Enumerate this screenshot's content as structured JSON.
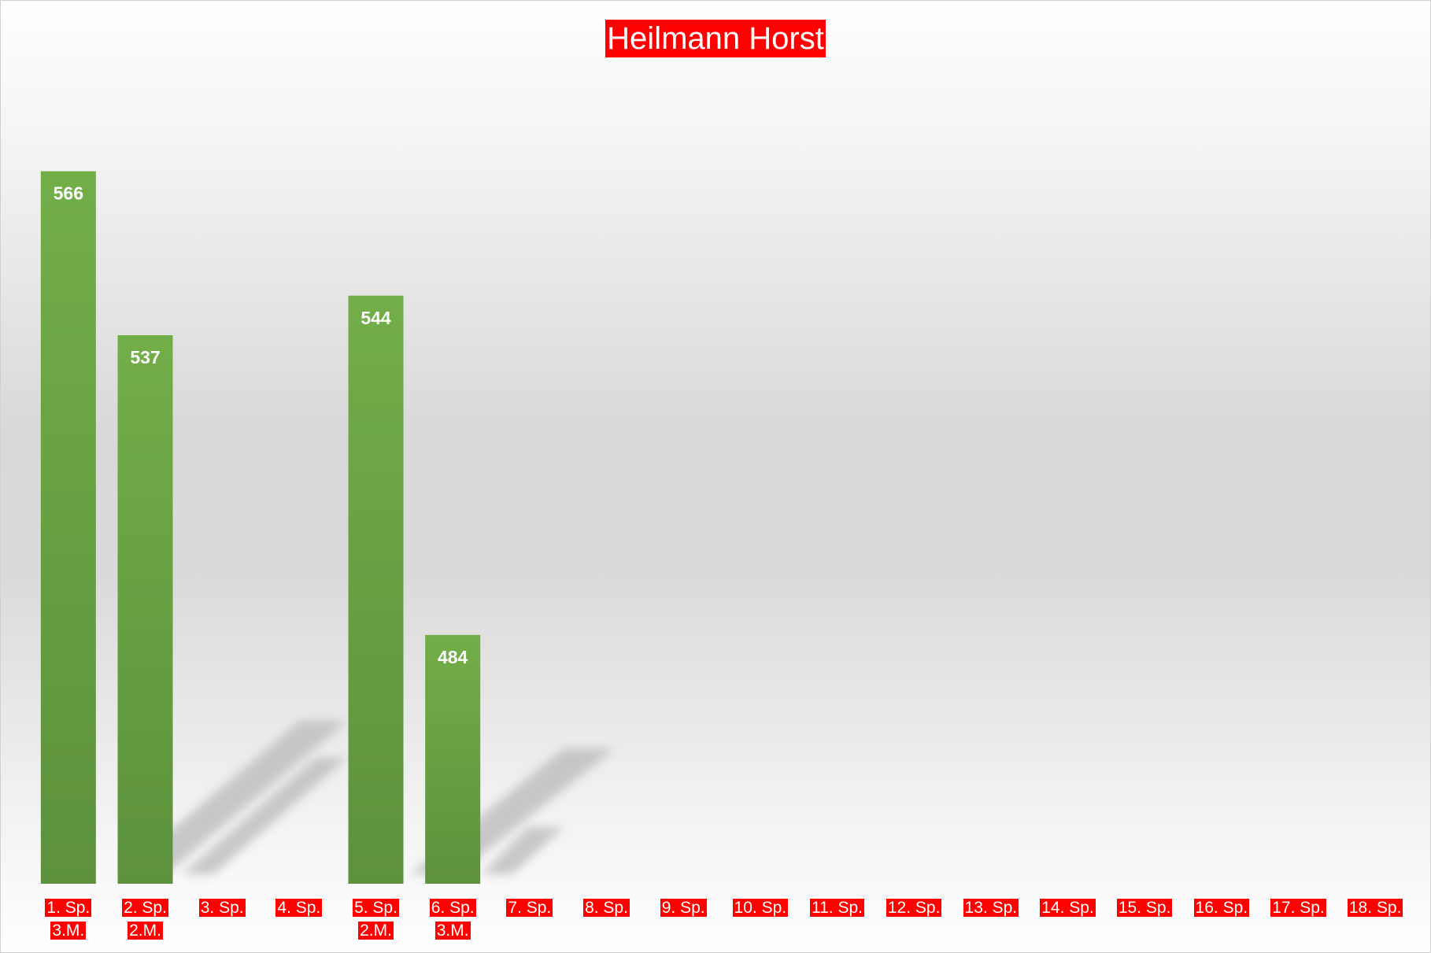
{
  "chart_data": {
    "type": "bar",
    "title": "Heilmann Horst",
    "categories": [
      "1. Sp.\n3.M.",
      "2. Sp.\n2.M.",
      "3. Sp.",
      "4. Sp.",
      "5. Sp.\n2.M.",
      "6. Sp.\n3.M.",
      "7. Sp.",
      "8. Sp.",
      "9. Sp.",
      "10. Sp.",
      "11. Sp.",
      "12. Sp.",
      "13. Sp.",
      "14. Sp.",
      "15. Sp.",
      "16. Sp.",
      "17. Sp.",
      "18. Sp."
    ],
    "values": [
      566,
      537,
      null,
      null,
      544,
      484,
      null,
      null,
      null,
      null,
      null,
      null,
      null,
      null,
      null,
      null,
      null,
      null
    ],
    "color": "#6aa544",
    "ylim": [
      440,
      580
    ]
  }
}
